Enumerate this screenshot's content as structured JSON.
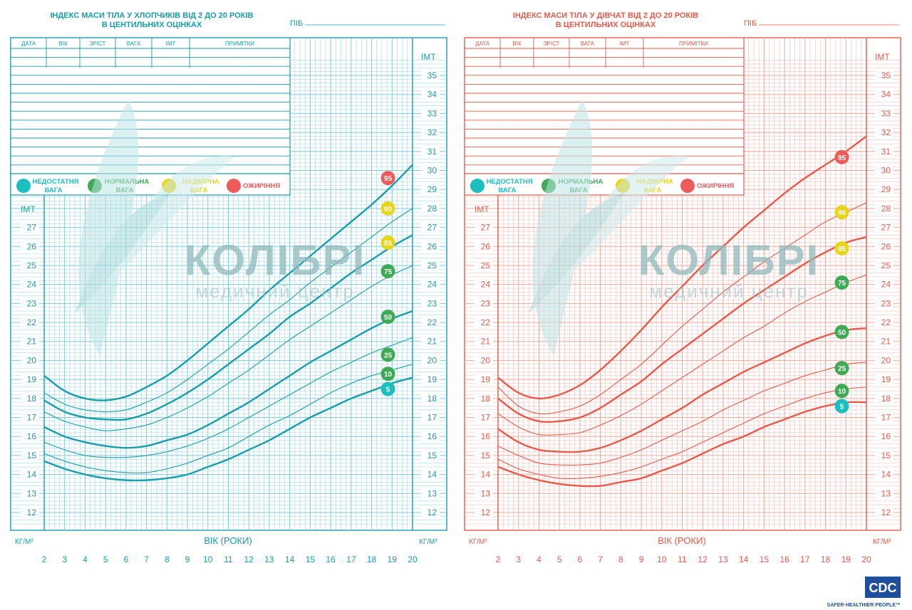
{
  "watermark": {
    "brand": "КОЛІБРІ",
    "sub": "медичний центр"
  },
  "cdc": {
    "logo": "CDC",
    "tagline": "SAFER·HEALTHIER·PEOPLE™"
  },
  "chart_data": [
    {
      "type": "line",
      "title": "ІНДЕКС МАСИ ТІЛА У ХЛОПЧИКІВ ВІД 2 ДО 20 РОКІВ",
      "subtitle": "В ЦЕНТИЛЬНИХ ОЦІНКАХ",
      "name_label": "ПІБ",
      "table_headers": [
        "ДАТА",
        "ВІК",
        "ЗРІСТ",
        "ВАГА",
        "ІМТ",
        "ПРИМІТКИ"
      ],
      "legend": [
        {
          "label": "НЕДОСТАТНЯ ВАГА",
          "color": "#1cbfbf"
        },
        {
          "label": "НОРМАЛЬНА ВАГА",
          "color": "#3faa55"
        },
        {
          "label": "НАДМІРНА ВАГА",
          "color": "#e8d51a"
        },
        {
          "label": "ОЖИРІННЯ",
          "color": "#ee5b5b"
        }
      ],
      "ylabel": "ІМТ",
      "unit": "КГ/М²",
      "xlabel": "ВІК (РОКИ)",
      "xlim": [
        2,
        20
      ],
      "ylim": [
        11,
        36
      ],
      "x_ticks": [
        2,
        3,
        4,
        5,
        6,
        7,
        8,
        9,
        10,
        11,
        12,
        13,
        14,
        15,
        16,
        17,
        18,
        19,
        20
      ],
      "y_ticks_left": [
        12,
        13,
        14,
        15,
        16,
        17,
        18,
        19,
        20,
        21,
        22,
        23,
        24,
        25,
        26,
        27
      ],
      "y_ticks_right": [
        12,
        13,
        14,
        15,
        16,
        17,
        18,
        19,
        20,
        21,
        22,
        23,
        24,
        25,
        26,
        27,
        28,
        29,
        30,
        31,
        32,
        33,
        34,
        35
      ],
      "x": [
        2,
        3,
        4,
        5,
        6,
        7,
        8,
        9,
        10,
        11,
        12,
        13,
        14,
        15,
        16,
        17,
        18,
        19,
        20
      ],
      "series": [
        {
          "name": "5",
          "emph": true,
          "values": [
            14.7,
            14.3,
            14.0,
            13.8,
            13.7,
            13.7,
            13.8,
            14.0,
            14.4,
            14.8,
            15.3,
            15.8,
            16.4,
            17.0,
            17.5,
            18.0,
            18.4,
            18.8,
            19.1
          ]
        },
        {
          "name": "10",
          "emph": false,
          "values": [
            15.1,
            14.7,
            14.4,
            14.2,
            14.1,
            14.1,
            14.3,
            14.6,
            15.0,
            15.4,
            16.0,
            16.6,
            17.1,
            17.7,
            18.3,
            18.8,
            19.2,
            19.5,
            19.8
          ]
        },
        {
          "name": "25",
          "emph": false,
          "values": [
            15.7,
            15.3,
            15.0,
            14.9,
            14.9,
            15.0,
            15.2,
            15.5,
            15.9,
            16.4,
            17.0,
            17.6,
            18.2,
            18.8,
            19.4,
            19.9,
            20.4,
            20.8,
            21.2
          ]
        },
        {
          "name": "50",
          "emph": true,
          "values": [
            16.5,
            16.0,
            15.7,
            15.5,
            15.4,
            15.5,
            15.8,
            16.1,
            16.6,
            17.2,
            17.8,
            18.5,
            19.2,
            19.9,
            20.5,
            21.1,
            21.7,
            22.2,
            22.6
          ]
        },
        {
          "name": "75",
          "emph": false,
          "values": [
            17.3,
            16.8,
            16.5,
            16.3,
            16.4,
            16.6,
            17.0,
            17.5,
            18.1,
            18.8,
            19.5,
            20.3,
            21.1,
            21.8,
            22.5,
            23.2,
            23.9,
            24.5,
            25.0
          ]
        },
        {
          "name": "85",
          "emph": true,
          "values": [
            17.9,
            17.3,
            17.0,
            16.9,
            16.9,
            17.2,
            17.7,
            18.3,
            19.0,
            19.8,
            20.6,
            21.4,
            22.3,
            23.0,
            23.8,
            24.6,
            25.3,
            26.0,
            26.6
          ]
        },
        {
          "name": "90",
          "emph": false,
          "values": [
            18.3,
            17.7,
            17.4,
            17.3,
            17.4,
            17.8,
            18.3,
            19.0,
            19.8,
            20.6,
            21.5,
            22.4,
            23.2,
            24.1,
            24.9,
            25.7,
            26.5,
            27.3,
            28.0
          ]
        },
        {
          "name": "95",
          "emph": true,
          "values": [
            19.2,
            18.4,
            18.0,
            17.9,
            18.1,
            18.6,
            19.2,
            20.0,
            20.9,
            21.8,
            22.7,
            23.7,
            24.6,
            25.5,
            26.4,
            27.3,
            28.2,
            29.2,
            30.3
          ]
        }
      ],
      "badges": [
        {
          "label": "95",
          "y": 29.6,
          "color": "#ee5b5b"
        },
        {
          "label": "90",
          "y": 28.0,
          "color": "#e8d51a"
        },
        {
          "label": "85",
          "y": 26.2,
          "color": "#e8d51a"
        },
        {
          "label": "75",
          "y": 24.7,
          "color": "#3faa55"
        },
        {
          "label": "50",
          "y": 22.3,
          "color": "#3faa55"
        },
        {
          "label": "25",
          "y": 20.3,
          "color": "#3faa55"
        },
        {
          "label": "10",
          "y": 19.3,
          "color": "#3faa55"
        },
        {
          "label": "5",
          "y": 18.5,
          "color": "#1cbfbf"
        }
      ],
      "line_color": "#189dab",
      "grid_color": "#7dccd6"
    },
    {
      "type": "line",
      "title": "ІНДЕКС МАСИ ТІЛА У ДІВЧАТ ВІД 2 ДО 20 РОКІВ",
      "subtitle": "В ЦЕНТИЛЬНИХ ОЦІНКАХ",
      "name_label": "ПІБ",
      "table_headers": [
        "ДАТА",
        "ВІК",
        "ЗРІСТ",
        "ВАГА",
        "ІМТ",
        "ПРИМІТКИ"
      ],
      "legend": [
        {
          "label": "НЕДОСТАТНЯ ВАГА",
          "color": "#1cbfbf"
        },
        {
          "label": "НОРМАЛЬНА ВАГА",
          "color": "#3faa55"
        },
        {
          "label": "НАДМІРНА ВАГА",
          "color": "#e8d51a"
        },
        {
          "label": "ОЖИРІННЯ",
          "color": "#ee5b5b"
        }
      ],
      "ylabel": "ІМТ",
      "unit": "КГ/М²",
      "xlabel": "ВІК (РОКИ)",
      "xlim": [
        2,
        20
      ],
      "ylim": [
        11,
        36
      ],
      "x_ticks": [
        2,
        3,
        4,
        5,
        6,
        7,
        8,
        9,
        10,
        11,
        12,
        13,
        14,
        15,
        16,
        17,
        18,
        19,
        20
      ],
      "y_ticks_left": [
        12,
        13,
        14,
        15,
        16,
        17,
        18,
        19,
        20,
        21,
        22,
        23,
        24,
        25,
        26,
        27
      ],
      "y_ticks_right": [
        12,
        13,
        14,
        15,
        16,
        17,
        18,
        19,
        20,
        21,
        22,
        23,
        24,
        25,
        26,
        27,
        28,
        29,
        30,
        31,
        32,
        33,
        34,
        35
      ],
      "x": [
        2,
        3,
        4,
        5,
        6,
        7,
        8,
        9,
        10,
        11,
        12,
        13,
        14,
        15,
        16,
        17,
        18,
        19,
        20
      ],
      "series": [
        {
          "name": "5",
          "emph": true,
          "values": [
            14.4,
            14.0,
            13.7,
            13.5,
            13.4,
            13.4,
            13.6,
            13.8,
            14.2,
            14.6,
            15.1,
            15.6,
            16.0,
            16.5,
            16.9,
            17.3,
            17.6,
            17.8,
            17.8
          ]
        },
        {
          "name": "10",
          "emph": false,
          "values": [
            14.8,
            14.3,
            14.0,
            13.8,
            13.8,
            13.9,
            14.1,
            14.4,
            14.8,
            15.2,
            15.7,
            16.2,
            16.7,
            17.2,
            17.6,
            18.0,
            18.3,
            18.5,
            18.6
          ]
        },
        {
          "name": "25",
          "emph": false,
          "values": [
            15.5,
            15.0,
            14.6,
            14.5,
            14.5,
            14.6,
            14.9,
            15.3,
            15.8,
            16.3,
            16.8,
            17.4,
            17.9,
            18.4,
            18.8,
            19.2,
            19.5,
            19.8,
            19.9
          ]
        },
        {
          "name": "50",
          "emph": true,
          "values": [
            16.4,
            15.7,
            15.3,
            15.2,
            15.2,
            15.4,
            15.8,
            16.3,
            16.9,
            17.5,
            18.2,
            18.8,
            19.4,
            19.9,
            20.4,
            20.9,
            21.3,
            21.6,
            21.7
          ]
        },
        {
          "name": "75",
          "emph": false,
          "values": [
            17.2,
            16.5,
            16.1,
            16.1,
            16.2,
            16.6,
            17.1,
            17.7,
            18.4,
            19.1,
            19.8,
            20.5,
            21.2,
            21.8,
            22.5,
            23.1,
            23.6,
            24.1,
            24.5
          ]
        },
        {
          "name": "85",
          "emph": true,
          "values": [
            18.0,
            17.2,
            16.8,
            16.8,
            17.0,
            17.5,
            18.2,
            18.9,
            19.8,
            20.6,
            21.4,
            22.2,
            23.0,
            23.7,
            24.4,
            25.1,
            25.7,
            26.2,
            26.5
          ]
        },
        {
          "name": "90",
          "emph": false,
          "values": [
            18.6,
            17.6,
            17.2,
            17.3,
            17.6,
            18.2,
            19.0,
            19.8,
            20.8,
            21.8,
            22.7,
            23.6,
            24.4,
            25.2,
            25.9,
            26.6,
            27.3,
            27.8,
            28.3
          ]
        },
        {
          "name": "95",
          "emph": true,
          "values": [
            19.1,
            18.3,
            18.0,
            18.2,
            18.7,
            19.5,
            20.5,
            21.6,
            22.8,
            23.9,
            25.0,
            26.0,
            27.0,
            27.9,
            28.8,
            29.6,
            30.3,
            31.0,
            31.8
          ]
        }
      ],
      "badges": [
        {
          "label": "95",
          "y": 30.7,
          "color": "#ee5b5b"
        },
        {
          "label": "90",
          "y": 27.8,
          "color": "#e8d51a"
        },
        {
          "label": "85",
          "y": 25.9,
          "color": "#e8d51a"
        },
        {
          "label": "75",
          "y": 24.1,
          "color": "#3faa55"
        },
        {
          "label": "50",
          "y": 21.5,
          "color": "#3faa55"
        },
        {
          "label": "25",
          "y": 19.6,
          "color": "#3faa55"
        },
        {
          "label": "10",
          "y": 18.4,
          "color": "#3faa55"
        },
        {
          "label": "5",
          "y": 17.6,
          "color": "#1cbfbf"
        }
      ],
      "line_color": "#e9594a",
      "grid_color": "#f1a79c"
    }
  ]
}
